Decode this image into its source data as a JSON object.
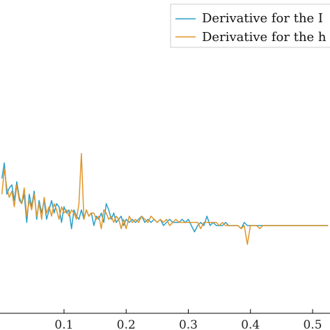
{
  "chart_data": {
    "type": "line",
    "xlim": [
      -0.003,
      0.528
    ],
    "ylim": [
      0,
      1
    ],
    "grid": false,
    "legend_position": "top-right",
    "x_ticks": [
      0.1,
      0.2,
      0.3,
      0.4,
      0.5
    ],
    "x_tick_labels": [
      "0.1",
      "0.2",
      "0.3",
      "0.4",
      "0.5"
    ],
    "series": [
      {
        "name": "Derivative for the I",
        "color": "#2a9fc9",
        "x": [
          0.0,
          0.004,
          0.008,
          0.012,
          0.016,
          0.02,
          0.024,
          0.028,
          0.032,
          0.036,
          0.04,
          0.044,
          0.048,
          0.052,
          0.056,
          0.06,
          0.064,
          0.068,
          0.072,
          0.076,
          0.08,
          0.084,
          0.088,
          0.092,
          0.096,
          0.1,
          0.104,
          0.108,
          0.112,
          0.116,
          0.12,
          0.124,
          0.128,
          0.132,
          0.136,
          0.14,
          0.144,
          0.148,
          0.152,
          0.156,
          0.16,
          0.164,
          0.168,
          0.172,
          0.176,
          0.18,
          0.184,
          0.188,
          0.192,
          0.196,
          0.2,
          0.205,
          0.21,
          0.215,
          0.22,
          0.225,
          0.23,
          0.235,
          0.24,
          0.245,
          0.25,
          0.255,
          0.26,
          0.265,
          0.27,
          0.275,
          0.28,
          0.285,
          0.29,
          0.295,
          0.3,
          0.305,
          0.31,
          0.315,
          0.32,
          0.325,
          0.33,
          0.335,
          0.34,
          0.345,
          0.35,
          0.355,
          0.36,
          0.365,
          0.37,
          0.375,
          0.38,
          0.385,
          0.39,
          0.395,
          0.4,
          0.405,
          0.41,
          0.415,
          0.42,
          0.425,
          0.43,
          0.435,
          0.44,
          0.445,
          0.45,
          0.455,
          0.46,
          0.465,
          0.47,
          0.475,
          0.48,
          0.485,
          0.49,
          0.495,
          0.5,
          0.505,
          0.51,
          0.515,
          0.52,
          0.525
        ],
        "values": [
          0.43,
          0.48,
          0.38,
          0.4,
          0.41,
          0.36,
          0.42,
          0.37,
          0.35,
          0.38,
          0.29,
          0.38,
          0.34,
          0.39,
          0.3,
          0.36,
          0.32,
          0.36,
          0.3,
          0.33,
          0.36,
          0.32,
          0.35,
          0.34,
          0.29,
          0.34,
          0.32,
          0.33,
          0.27,
          0.33,
          0.31,
          0.3,
          0.33,
          0.3,
          0.33,
          0.31,
          0.32,
          0.28,
          0.31,
          0.3,
          0.32,
          0.29,
          0.35,
          0.33,
          0.3,
          0.32,
          0.29,
          0.3,
          0.31,
          0.28,
          0.3,
          0.29,
          0.3,
          0.29,
          0.3,
          0.31,
          0.29,
          0.3,
          0.29,
          0.3,
          0.29,
          0.3,
          0.28,
          0.29,
          0.3,
          0.29,
          0.29,
          0.29,
          0.3,
          0.29,
          0.3,
          0.28,
          0.26,
          0.28,
          0.29,
          0.28,
          0.31,
          0.28,
          0.29,
          0.28,
          0.28,
          0.28,
          0.29,
          0.28,
          0.28,
          0.28,
          0.28,
          0.27,
          0.29,
          0.28,
          0.28,
          0.28,
          0.28,
          0.28,
          0.28,
          0.28,
          0.28,
          0.28,
          0.28,
          0.28,
          0.28,
          0.28,
          0.28,
          0.28,
          0.28,
          0.28,
          0.28,
          0.28,
          0.28,
          0.28,
          0.28,
          0.28,
          0.28,
          0.28,
          0.28,
          0.28
        ]
      },
      {
        "name": "Derivative for the h",
        "color": "#e0952a",
        "x": [
          0.0,
          0.004,
          0.008,
          0.012,
          0.016,
          0.02,
          0.024,
          0.028,
          0.032,
          0.036,
          0.04,
          0.044,
          0.048,
          0.052,
          0.056,
          0.06,
          0.064,
          0.068,
          0.072,
          0.076,
          0.08,
          0.084,
          0.088,
          0.092,
          0.096,
          0.1,
          0.104,
          0.108,
          0.112,
          0.116,
          0.12,
          0.124,
          0.128,
          0.132,
          0.136,
          0.14,
          0.144,
          0.148,
          0.152,
          0.156,
          0.16,
          0.164,
          0.168,
          0.172,
          0.176,
          0.18,
          0.184,
          0.188,
          0.192,
          0.196,
          0.2,
          0.205,
          0.21,
          0.215,
          0.22,
          0.225,
          0.23,
          0.235,
          0.24,
          0.245,
          0.25,
          0.255,
          0.26,
          0.265,
          0.27,
          0.275,
          0.28,
          0.285,
          0.29,
          0.295,
          0.3,
          0.305,
          0.31,
          0.315,
          0.32,
          0.325,
          0.33,
          0.335,
          0.34,
          0.345,
          0.35,
          0.355,
          0.36,
          0.365,
          0.37,
          0.375,
          0.38,
          0.385,
          0.39,
          0.395,
          0.4,
          0.405,
          0.41,
          0.415,
          0.42,
          0.425,
          0.43,
          0.435,
          0.44,
          0.445,
          0.45,
          0.455,
          0.46,
          0.465,
          0.47,
          0.475,
          0.48,
          0.485,
          0.49,
          0.495,
          0.5,
          0.505,
          0.51,
          0.515,
          0.52,
          0.525
        ],
        "values": [
          0.38,
          0.46,
          0.4,
          0.37,
          0.39,
          0.34,
          0.41,
          0.36,
          0.35,
          0.4,
          0.31,
          0.36,
          0.33,
          0.38,
          0.31,
          0.35,
          0.3,
          0.37,
          0.32,
          0.34,
          0.31,
          0.35,
          0.33,
          0.3,
          0.34,
          0.32,
          0.33,
          0.31,
          0.33,
          0.32,
          0.3,
          0.35,
          0.51,
          0.3,
          0.33,
          0.31,
          0.32,
          0.32,
          0.3,
          0.31,
          0.27,
          0.33,
          0.32,
          0.3,
          0.31,
          0.29,
          0.31,
          0.3,
          0.27,
          0.3,
          0.27,
          0.31,
          0.29,
          0.3,
          0.29,
          0.31,
          0.3,
          0.29,
          0.31,
          0.3,
          0.29,
          0.3,
          0.29,
          0.3,
          0.28,
          0.29,
          0.3,
          0.29,
          0.29,
          0.29,
          0.29,
          0.29,
          0.29,
          0.29,
          0.27,
          0.29,
          0.29,
          0.29,
          0.29,
          0.29,
          0.28,
          0.29,
          0.28,
          0.28,
          0.28,
          0.28,
          0.28,
          0.27,
          0.28,
          0.22,
          0.28,
          0.28,
          0.28,
          0.27,
          0.28,
          0.28,
          0.28,
          0.28,
          0.28,
          0.28,
          0.28,
          0.28,
          0.28,
          0.28,
          0.28,
          0.28,
          0.28,
          0.28,
          0.28,
          0.28,
          0.28,
          0.28,
          0.28,
          0.28,
          0.28,
          0.28
        ]
      }
    ]
  }
}
